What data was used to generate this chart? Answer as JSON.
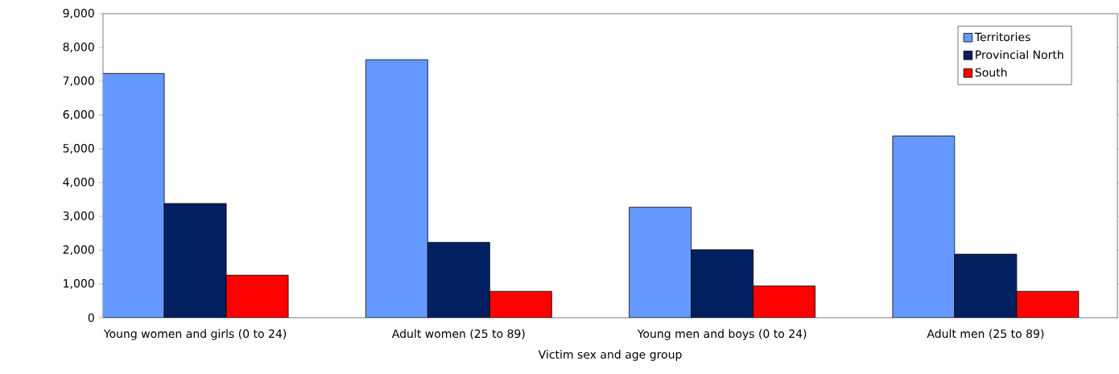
{
  "chart_data": {
    "type": "bar",
    "xlabel": "Victim sex and age group",
    "categories": [
      "Young women and girls (0 to 24)",
      "Adult women (25 to 89)",
      "Young men and boys (0 to 24)",
      "Adult men (25 to 89)"
    ],
    "series": [
      {
        "name": "Territories",
        "color": "#6699ff",
        "values": [
          7230,
          7640,
          3270,
          5380
        ]
      },
      {
        "name": "Provincial North",
        "color": "#002060",
        "values": [
          3380,
          2230,
          2010,
          1880
        ]
      },
      {
        "name": "South",
        "color": "#ff0000",
        "values": [
          1260,
          780,
          940,
          780
        ]
      }
    ],
    "ylim": [
      0,
      9000
    ],
    "yticks": [
      {
        "value": 0,
        "label": "0"
      },
      {
        "value": 1000,
        "label": "1,000"
      },
      {
        "value": 2000,
        "label": "2,000"
      },
      {
        "value": 3000,
        "label": "3,000"
      },
      {
        "value": 4000,
        "label": "4,000"
      },
      {
        "value": 5000,
        "label": "5,000"
      },
      {
        "value": 6000,
        "label": "6,000"
      },
      {
        "value": 7000,
        "label": "7,000"
      },
      {
        "value": 8000,
        "label": "8,000"
      },
      {
        "value": 9000,
        "label": "9,000"
      }
    ],
    "grid": false,
    "legend": "top right"
  }
}
